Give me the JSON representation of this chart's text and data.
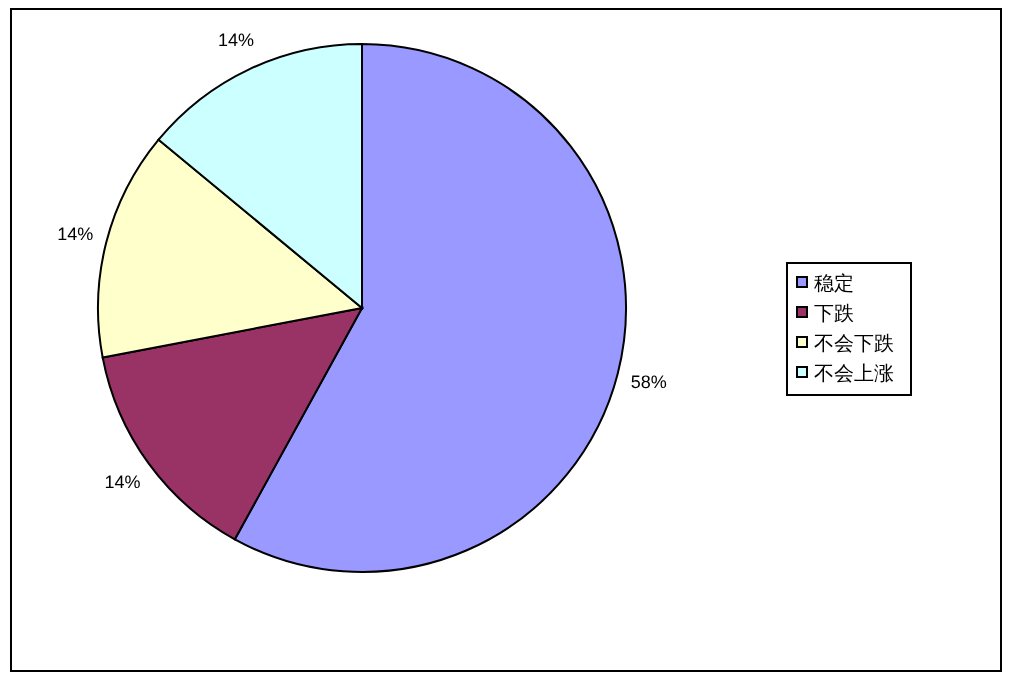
{
  "chart_data": {
    "type": "pie",
    "categories": [
      "稳定",
      "下跌",
      "不会下跌",
      "不会上涨"
    ],
    "values": [
      58,
      14,
      14,
      14
    ],
    "colors": [
      "#9999ff",
      "#993366",
      "#ffffcc",
      "#ccffff"
    ],
    "value_labels": [
      "58%",
      "14%",
      "14%",
      "14%"
    ],
    "legend": "right"
  }
}
